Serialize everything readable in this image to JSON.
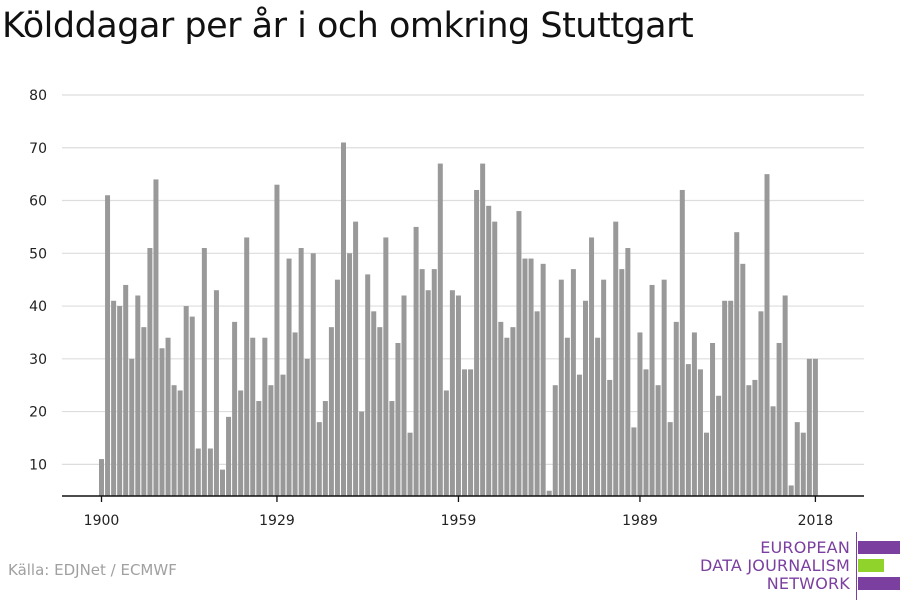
{
  "chart_data": {
    "type": "bar",
    "title": "Kölddagar per år i och omkring Stuttgart",
    "source": "Källa: EDJNet / ECMWF",
    "x_start_year": 1900,
    "x_end_year": 2018,
    "x_ticks": [
      "1900",
      "1929",
      "1959",
      "1989",
      "2018"
    ],
    "y_ticks": [
      10,
      20,
      30,
      40,
      50,
      60,
      70,
      80
    ],
    "ylim": [
      4,
      80
    ],
    "grid": true,
    "bar_color": "#999999",
    "values": [
      11,
      61,
      41,
      40,
      44,
      30,
      42,
      36,
      51,
      64,
      32,
      34,
      25,
      24,
      40,
      38,
      13,
      51,
      13,
      43,
      9,
      19,
      37,
      24,
      53,
      34,
      22,
      34,
      25,
      63,
      27,
      49,
      35,
      51,
      30,
      50,
      18,
      22,
      36,
      45,
      71,
      50,
      56,
      20,
      46,
      39,
      36,
      53,
      22,
      33,
      42,
      16,
      55,
      47,
      43,
      47,
      67,
      24,
      43,
      42,
      28,
      28,
      62,
      67,
      59,
      56,
      37,
      34,
      36,
      58,
      49,
      49,
      39,
      48,
      5,
      25,
      45,
      34,
      47,
      27,
      41,
      53,
      34,
      45,
      26,
      56,
      47,
      51,
      17,
      35,
      28,
      44,
      25,
      45,
      18,
      37,
      62,
      29,
      35,
      28,
      16,
      33,
      23,
      41,
      41,
      54,
      48,
      25,
      26,
      39,
      65,
      21,
      33,
      42,
      6,
      18,
      16,
      30,
      30
    ]
  },
  "logo": {
    "line1": "EUROPEAN",
    "line2": "DATA JOURNALISM",
    "line3": "NETWORK",
    "purple": "#7b3fa0",
    "green": "#8fd32b"
  }
}
